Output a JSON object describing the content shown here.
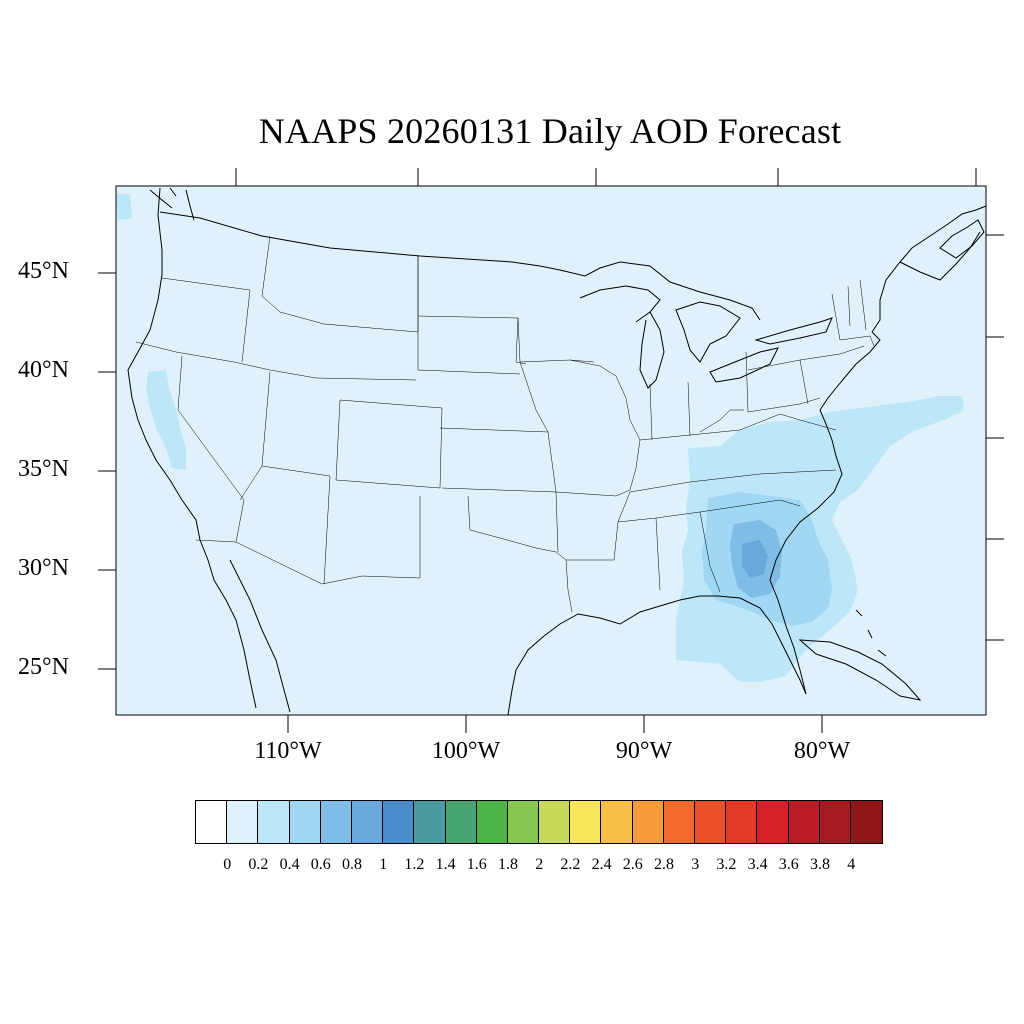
{
  "title": "NAAPS 20260131 Daily AOD Forecast",
  "lat_labels": [
    "45°N",
    "40°N",
    "35°N",
    "30°N",
    "25°N"
  ],
  "lon_labels": [
    "110°W",
    "100°W",
    "90°W",
    "80°W"
  ],
  "colorbar": {
    "labels": [
      "0",
      "0.2",
      "0.4",
      "0.6",
      "0.8",
      "1",
      "1.2",
      "1.4",
      "1.6",
      "1.8",
      "2",
      "2.2",
      "2.4",
      "2.6",
      "2.8",
      "3",
      "3.2",
      "3.4",
      "3.6",
      "3.8",
      "4"
    ],
    "colors": [
      "#ffffff",
      "#dff2fb",
      "#bde6f8",
      "#a0d7f3",
      "#7fbde6",
      "#68a8dc",
      "#4a8bca",
      "#4a9aa0",
      "#48a572",
      "#4cb447",
      "#87c650",
      "#c8d85a",
      "#f8e65a",
      "#f7bf48",
      "#f59a3a",
      "#f26a2e",
      "#ea5028",
      "#e23a26",
      "#d42028",
      "#b91c24",
      "#a41a20",
      "#8f1616"
    ]
  },
  "aod_field": {
    "background_level": 0.2,
    "plumes": [
      {
        "region": "southeastern US",
        "peak_aod": 0.9
      },
      {
        "region": "central California",
        "peak_aod": 0.4
      },
      {
        "region": "mid-Atlantic offshore",
        "peak_aod": 0.4
      }
    ]
  }
}
